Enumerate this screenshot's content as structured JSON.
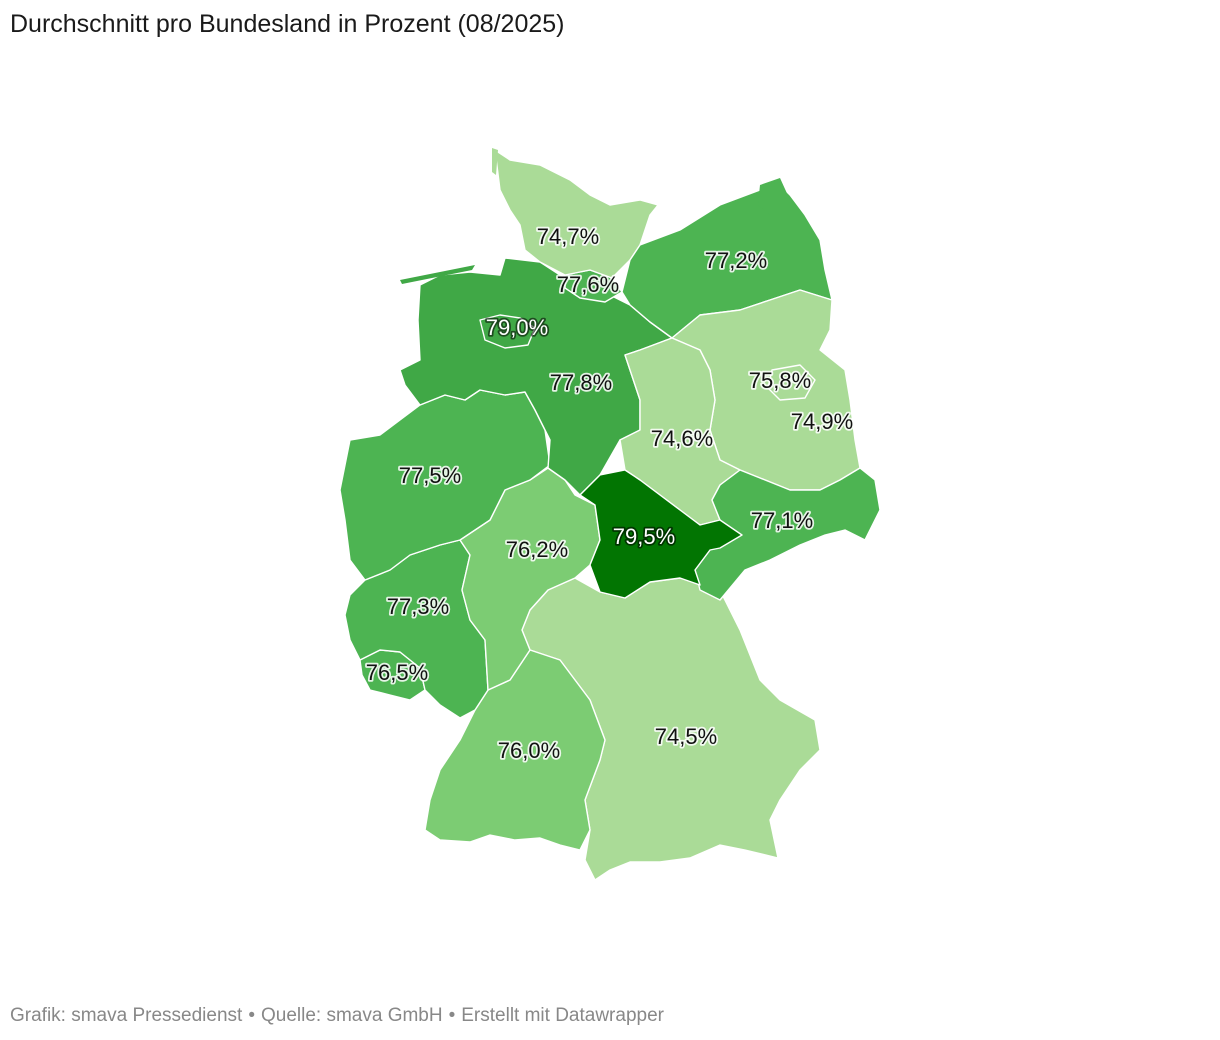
{
  "title": "Durchschnitt pro Bundesland in Prozent (08/2025)",
  "footer": {
    "grafik": "Grafik: smava Pressedienst",
    "quelle": "Quelle: smava GmbH",
    "erstellt": "Erstellt mit Datawrapper",
    "separator": "•"
  },
  "colors": {
    "scale": [
      "#aadb97",
      "#7ccc73",
      "#4db452",
      "#40a846",
      "#027502"
    ],
    "border": "#ffffff"
  },
  "regions": [
    {
      "id": "schleswig-holstein",
      "value": 74.7,
      "label": "74,7%",
      "color": "#aadb97"
    },
    {
      "id": "hamburg",
      "value": 77.6,
      "label": "77,6%",
      "color": "#4db452"
    },
    {
      "id": "mecklenburg-vorpommern",
      "value": 77.2,
      "label": "77,2%",
      "color": "#4db452"
    },
    {
      "id": "bremen",
      "value": 79.0,
      "label": "79,0%",
      "color": "#40a846"
    },
    {
      "id": "niedersachsen",
      "value": 77.8,
      "label": "77,8%",
      "color": "#40a846"
    },
    {
      "id": "brandenburg",
      "value": 75.8,
      "label": "75,8%",
      "color": "#aadb97"
    },
    {
      "id": "berlin",
      "value": 74.9,
      "label": "74,9%",
      "color": "#aadb97"
    },
    {
      "id": "sachsen-anhalt",
      "value": 74.6,
      "label": "74,6%",
      "color": "#aadb97"
    },
    {
      "id": "nordrhein-westfalen",
      "value": 77.5,
      "label": "77,5%",
      "color": "#4db452"
    },
    {
      "id": "hessen",
      "value": 76.2,
      "label": "76,2%",
      "color": "#7ccc73"
    },
    {
      "id": "thueringen",
      "value": 79.5,
      "label": "79,5%",
      "color": "#027502"
    },
    {
      "id": "sachsen",
      "value": 77.1,
      "label": "77,1%",
      "color": "#4db452"
    },
    {
      "id": "rheinland-pfalz",
      "value": 77.3,
      "label": "77,3%",
      "color": "#4db452"
    },
    {
      "id": "saarland",
      "value": 76.5,
      "label": "76,5%",
      "color": "#4db452"
    },
    {
      "id": "baden-wuerttemberg",
      "value": 76.0,
      "label": "76,0%",
      "color": "#7ccc73"
    },
    {
      "id": "bayern",
      "value": 74.5,
      "label": "74,5%",
      "color": "#aadb97"
    }
  ]
}
